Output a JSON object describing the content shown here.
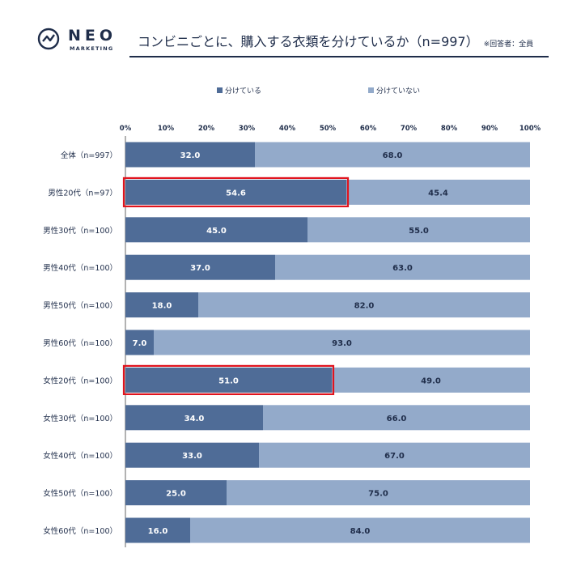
{
  "logo": {
    "name": "NEO",
    "sub": "MARKETING"
  },
  "header": {
    "title": "コンビニごとに、購入する衣類を分けているか（n=997）",
    "note": "※回答者：全員"
  },
  "colors": {
    "dark": "#4f6c97",
    "light": "#93aaca",
    "highlight": "#e0141e",
    "text": "#1f2d4a"
  },
  "chart_data": {
    "type": "bar",
    "orientation": "horizontal",
    "stacked": true,
    "percent_axis": true,
    "xlim": [
      0,
      100
    ],
    "x_ticks": [
      "0%",
      "10%",
      "20%",
      "30%",
      "40%",
      "50%",
      "60%",
      "70%",
      "80%",
      "90%",
      "100%"
    ],
    "legend": {
      "position": "top",
      "entries": [
        "分けている",
        "分けていない"
      ]
    },
    "categories": [
      "全体（n=997）",
      "男性20代（n=97）",
      "男性30代（n=100）",
      "男性40代（n=100）",
      "男性50代（n=100）",
      "男性60代（n=100）",
      "女性20代（n=100）",
      "女性30代（n=100）",
      "女性40代（n=100）",
      "女性50代（n=100）",
      "女性60代（n=100）"
    ],
    "series": [
      {
        "name": "分けている",
        "values": [
          32.0,
          54.6,
          45.0,
          37.0,
          18.0,
          7.0,
          51.0,
          34.0,
          33.0,
          25.0,
          16.0
        ],
        "labels": [
          "32.0",
          "54.6",
          "45.0",
          "37.0",
          "18.0",
          "7.0",
          "51.0",
          "34.0",
          "33.0",
          "25.0",
          "16.0"
        ]
      },
      {
        "name": "分けていない",
        "values": [
          68.0,
          45.4,
          55.0,
          63.0,
          82.0,
          93.0,
          49.0,
          66.0,
          67.0,
          75.0,
          84.0
        ],
        "labels": [
          "68.0",
          "45.4",
          "55.0",
          "63.0",
          "82.0",
          "93.0",
          "49.0",
          "66.0",
          "67.0",
          "75.0",
          "84.0"
        ]
      }
    ],
    "highlighted_categories": [
      "男性20代（n=97）",
      "女性20代（n=100）"
    ]
  }
}
